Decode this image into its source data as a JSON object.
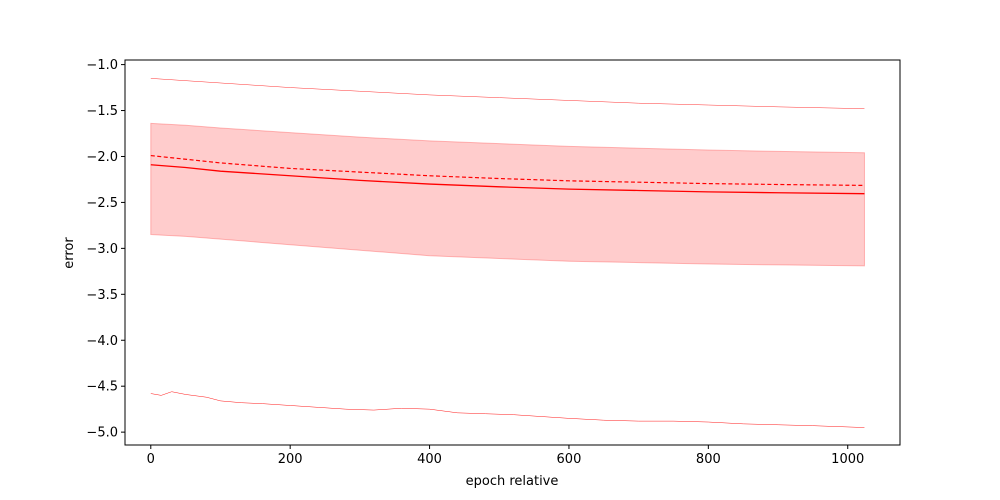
{
  "chart_data": {
    "type": "line",
    "title": "",
    "xlabel": "epoch relative",
    "ylabel": "error",
    "xlim": [
      -37,
      1075
    ],
    "ylim": [
      -5.14,
      -0.95
    ],
    "xticks": [
      0,
      200,
      400,
      600,
      800,
      1000
    ],
    "yticks": [
      -1.0,
      -1.5,
      -2.0,
      -2.5,
      -3.0,
      -3.5,
      -4.0,
      -4.5,
      -5.0
    ],
    "grid": false,
    "legend": "none",
    "colors": {
      "line": "#ff0000",
      "band": "#ff0000",
      "axis": "#000000"
    },
    "band": {
      "x": [
        0,
        50,
        100,
        200,
        300,
        400,
        500,
        600,
        700,
        800,
        900,
        1024
      ],
      "upper": [
        -1.64,
        -1.66,
        -1.69,
        -1.74,
        -1.79,
        -1.83,
        -1.86,
        -1.89,
        -1.91,
        -1.93,
        -1.945,
        -1.96
      ],
      "lower": [
        -2.85,
        -2.87,
        -2.9,
        -2.96,
        -3.02,
        -3.08,
        -3.11,
        -3.14,
        -3.155,
        -3.17,
        -3.18,
        -3.19
      ]
    },
    "series": [
      {
        "style": "solid",
        "x": [
          0,
          50,
          100,
          200,
          300,
          400,
          500,
          600,
          700,
          800,
          900,
          1024
        ],
        "values": [
          -2.09,
          -2.12,
          -2.16,
          -2.21,
          -2.26,
          -2.3,
          -2.33,
          -2.355,
          -2.37,
          -2.385,
          -2.395,
          -2.405
        ]
      },
      {
        "style": "dashed",
        "x": [
          0,
          50,
          100,
          200,
          300,
          400,
          500,
          600,
          700,
          800,
          900,
          1024
        ],
        "values": [
          -1.99,
          -2.03,
          -2.07,
          -2.13,
          -2.17,
          -2.21,
          -2.24,
          -2.265,
          -2.28,
          -2.295,
          -2.305,
          -2.315
        ]
      },
      {
        "style": "thin",
        "x": [
          0,
          100,
          200,
          300,
          400,
          500,
          600,
          700,
          800,
          900,
          1024
        ],
        "values": [
          -1.15,
          -1.2,
          -1.25,
          -1.29,
          -1.33,
          -1.36,
          -1.39,
          -1.42,
          -1.44,
          -1.46,
          -1.48
        ]
      },
      {
        "style": "thin-noisy",
        "x": [
          0,
          15,
          30,
          50,
          80,
          100,
          130,
          160,
          200,
          240,
          280,
          320,
          360,
          400,
          440,
          480,
          520,
          560,
          600,
          650,
          700,
          750,
          800,
          850,
          900,
          950,
          1024
        ],
        "values": [
          -4.58,
          -4.6,
          -4.56,
          -4.59,
          -4.62,
          -4.66,
          -4.68,
          -4.69,
          -4.71,
          -4.73,
          -4.75,
          -4.76,
          -4.74,
          -4.75,
          -4.79,
          -4.8,
          -4.81,
          -4.83,
          -4.85,
          -4.87,
          -4.88,
          -4.88,
          -4.89,
          -4.91,
          -4.92,
          -4.93,
          -4.95
        ]
      }
    ]
  }
}
